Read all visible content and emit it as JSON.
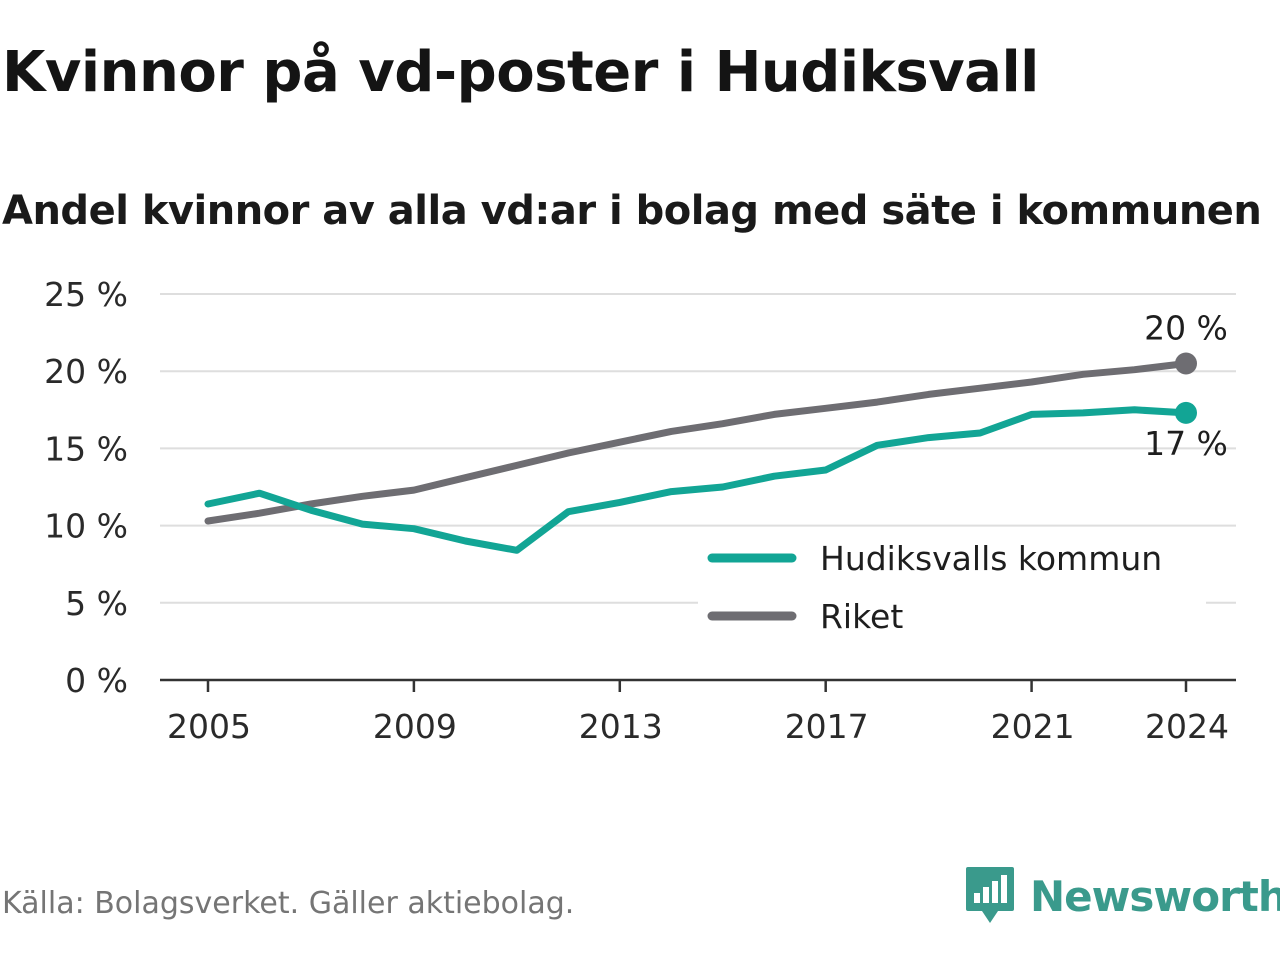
{
  "header": {
    "title": "Kvinnor på vd-poster i Hudiksvall",
    "subtitle": "Andel kvinnor av alla vd:ar i bolag med säte i kommunen"
  },
  "footer": {
    "source": "Källa: Bolagsverket. Gäller aktiebolag.",
    "brand": "Newsworthy",
    "brand_icon": "newsworthy-chart-icon"
  },
  "colors": {
    "kommun": "#12a595",
    "riket": "#6e6d72",
    "grid": "#dedede",
    "axis": "#333333",
    "brand": "#3a9a8c"
  },
  "chart_data": {
    "type": "line",
    "title": "Kvinnor på vd-poster i Hudiksvall",
    "subtitle": "Andel kvinnor av alla vd:ar i bolag med säte i kommunen",
    "xlabel": "",
    "ylabel": "",
    "x": [
      2005,
      2006,
      2007,
      2008,
      2009,
      2010,
      2011,
      2012,
      2013,
      2014,
      2015,
      2016,
      2017,
      2018,
      2019,
      2020,
      2021,
      2022,
      2023,
      2024
    ],
    "x_ticks": [
      2005,
      2009,
      2013,
      2017,
      2021,
      2024
    ],
    "x_tick_labels": [
      "2005",
      "2009",
      "2013",
      "2017",
      "2021",
      "2024"
    ],
    "ylim": [
      0,
      25
    ],
    "y_ticks": [
      0,
      5,
      10,
      15,
      20,
      25
    ],
    "y_tick_labels": [
      "0 %",
      "5 %",
      "10 %",
      "15 %",
      "20 %",
      "25 %"
    ],
    "grid": true,
    "legend_position": "bottom-right",
    "series": [
      {
        "name": "Hudiksvalls kommun",
        "key": "kommun",
        "values": [
          11.4,
          12.1,
          11.0,
          10.1,
          9.8,
          9.0,
          8.4,
          10.9,
          11.5,
          12.2,
          12.5,
          13.2,
          13.6,
          15.2,
          15.7,
          16.0,
          17.2,
          17.3,
          17.5,
          17.3
        ],
        "end_label": "17 %"
      },
      {
        "name": "Riket",
        "key": "riket",
        "values": [
          10.3,
          10.8,
          11.4,
          11.9,
          12.3,
          13.1,
          13.9,
          14.7,
          15.4,
          16.1,
          16.6,
          17.2,
          17.6,
          18.0,
          18.5,
          18.9,
          19.3,
          19.8,
          20.1,
          20.5
        ],
        "end_label": "20 %"
      }
    ]
  }
}
